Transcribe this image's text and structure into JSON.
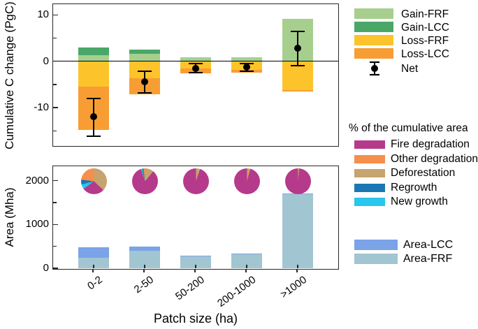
{
  "axes": {
    "x_title": "Patch size (ha)",
    "categories": [
      "0-2",
      "2-50",
      "50-200",
      "200-1000",
      ">1000"
    ]
  },
  "legend_top": {
    "items": [
      {
        "label": "Gain-FRF",
        "color": "#a6cf8e"
      },
      {
        "label": "Gain-LCC",
        "color": "#4aa768"
      },
      {
        "label": "Loss-FRF",
        "color": "#fcc32b"
      },
      {
        "label": "Loss-LCC",
        "color": "#f89d33"
      },
      {
        "label": "Net",
        "color": "#000000",
        "symbol": "dot-with-error-bar"
      }
    ]
  },
  "legend_pies": {
    "title": "% of the cumulative area",
    "items": [
      {
        "label": "Fire degradation",
        "color": "#b53a8b"
      },
      {
        "label": "Other degradation",
        "color": "#f68e4c"
      },
      {
        "label": "Deforestation",
        "color": "#c7a36f"
      },
      {
        "label": "Regrowth",
        "color": "#1978b3"
      },
      {
        "label": "New growth",
        "color": "#29c6ee"
      }
    ]
  },
  "legend_area": {
    "items": [
      {
        "label": "Area-LCC",
        "color": "#7aa3e8"
      },
      {
        "label": "Area-FRF",
        "color": "#a2c5d2"
      }
    ]
  },
  "chart_data": [
    {
      "type": "bar",
      "id": "carbon",
      "stacked": true,
      "ylabel": "Cumulative C change (PgC)",
      "categories": [
        "0-2",
        "2-50",
        "50-200",
        "200-1000",
        ">1000"
      ],
      "series": [
        {
          "name": "Gain-FRF",
          "color": "#a6cf8e",
          "values": [
            1.3,
            1.6,
            0.9,
            0.9,
            9.1
          ]
        },
        {
          "name": "Gain-LCC",
          "color": "#4aa768",
          "values": [
            1.6,
            0.9,
            0,
            0,
            0
          ]
        },
        {
          "name": "Loss-FRF",
          "color": "#fcc32b",
          "values": [
            -5.5,
            -3.6,
            -1.6,
            -1.8,
            -6.2
          ]
        },
        {
          "name": "Loss-LCC",
          "color": "#f89d33",
          "values": [
            -9.3,
            -3.5,
            -1.0,
            -0.6,
            -0.4
          ]
        }
      ],
      "net": {
        "name": "Net",
        "color": "#000000",
        "values": [
          -11.9,
          -4.4,
          -1.5,
          -1.3,
          2.8
        ],
        "ci_low": [
          -16.2,
          -6.8,
          -2.5,
          -2.2,
          -1.0
        ],
        "ci_high": [
          -8.0,
          -2.2,
          -0.5,
          -0.5,
          6.4
        ]
      },
      "ylim": [
        -18.1,
        12.3
      ],
      "yticks": [
        10,
        0,
        -10
      ],
      "yticks_minor": [
        5,
        -5,
        -15
      ],
      "zero_line": true,
      "grid": false,
      "legend_position": "right"
    },
    {
      "type": "bar+pie",
      "id": "area",
      "stacked": true,
      "ylabel": "Area (Mha)",
      "xlabel": "Patch size (ha)",
      "categories": [
        "0-2",
        "2-50",
        "50-200",
        "200-1000",
        ">1000"
      ],
      "series": [
        {
          "name": "Area-FRF",
          "color": "#a2c5d2",
          "values": [
            230,
            400,
            270,
            320,
            1690
          ]
        },
        {
          "name": "Area-LCC",
          "color": "#7aa3e8",
          "values": [
            250,
            100,
            10,
            10,
            15
          ]
        }
      ],
      "ylim": [
        0,
        2330
      ],
      "yticks": [
        0,
        1000,
        2000
      ],
      "yticks_minor": [
        500,
        1500
      ],
      "zero_line": false,
      "grid": false,
      "pies": {
        "title": "% of the cumulative area",
        "unit": "%",
        "slice_order_clockwise_from_top": [
          "Deforestation",
          "Fire degradation",
          "New growth",
          "Regrowth",
          "Other degradation"
        ],
        "colors": {
          "Fire degradation": "#b53a8b",
          "Other degradation": "#f68e4c",
          "Deforestation": "#c7a36f",
          "Regrowth": "#1978b3",
          "New growth": "#29c6ee"
        },
        "values_pct": [
          {
            "category": "0-2",
            "Fire degradation": 28,
            "Other degradation": 23,
            "Deforestation": 37,
            "Regrowth": 6,
            "New growth": 6
          },
          {
            "category": "2-50",
            "Fire degradation": 84,
            "Other degradation": 2,
            "Deforestation": 11,
            "Regrowth": 1.5,
            "New growth": 1.5
          },
          {
            "category": "50-200",
            "Fire degradation": 95,
            "Other degradation": 0,
            "Deforestation": 5,
            "Regrowth": 0,
            "New growth": 0
          },
          {
            "category": "200-1000",
            "Fire degradation": 96,
            "Other degradation": 0,
            "Deforestation": 4,
            "Regrowth": 0,
            "New growth": 0
          },
          {
            "category": ">1000",
            "Fire degradation": 98.5,
            "Other degradation": 0,
            "Deforestation": 1.5,
            "Regrowth": 0,
            "New growth": 0
          }
        ]
      }
    }
  ]
}
